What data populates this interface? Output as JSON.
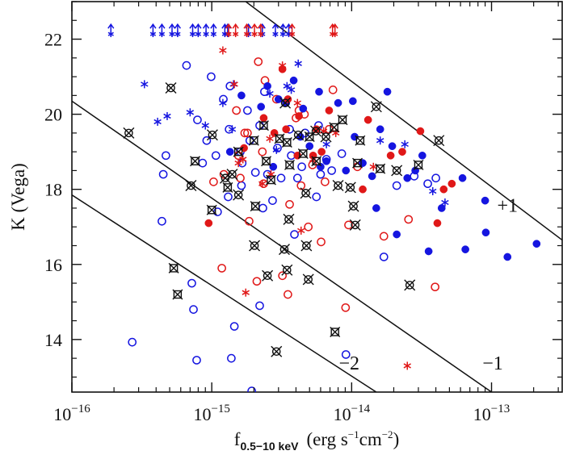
{
  "chart_data": {
    "type": "scatter",
    "title": "",
    "xlabel": "f",
    "xlabel_sub": "0.5−10 keV",
    "xlabel_units": "(erg s",
    "xlabel_units_sup1": "−1",
    "xlabel_units_mid": "cm",
    "xlabel_units_sup2": "−2",
    "xlabel_units_end": ")",
    "ylabel": "K (Vega)",
    "x_scale": "log",
    "xlim": [
      1e-16,
      3.2e-13
    ],
    "ylim": [
      12.6,
      23.0
    ],
    "x_ticks": [
      {
        "value": 1e-16,
        "base": "10",
        "exp": "−16"
      },
      {
        "value": 1e-15,
        "base": "10",
        "exp": "−15"
      },
      {
        "value": 1e-14,
        "base": "10",
        "exp": "−14"
      },
      {
        "value": 1e-13,
        "base": "10",
        "exp": "−13"
      }
    ],
    "y_ticks": [
      {
        "value": 14,
        "label": "14"
      },
      {
        "value": 16,
        "label": "16"
      },
      {
        "value": 18,
        "label": "18"
      },
      {
        "value": 20,
        "label": "20"
      },
      {
        "value": 22,
        "label": "22"
      }
    ],
    "grid": false,
    "colors": {
      "blue": "#1515e0",
      "red": "#e01818",
      "black": "#111111"
    },
    "reference_lines": [
      {
        "label": "+1",
        "points": [
          [
            1.75e-15,
            23.0
          ],
          [
            3.2e-13,
            16.65
          ]
        ]
      },
      {
        "label": "−1",
        "points": [
          [
            1e-16,
            20.35
          ],
          [
            1e-13,
            12.6
          ]
        ]
      },
      {
        "label": "−2",
        "points": [
          [
            1e-16,
            17.85
          ],
          [
            1.5e-14,
            12.6
          ]
        ]
      }
    ],
    "line_labels": [
      {
        "text": "+1",
        "x": 1.3e-13,
        "y": 17.4
      },
      {
        "text": "−1",
        "x": 1.02e-13,
        "y": 13.2
      },
      {
        "text": "−2",
        "x": 9.6e-15,
        "y": 13.2
      }
    ],
    "upper_limits": {
      "y": 22.2,
      "blue": [
        1.9e-16,
        3.8e-16,
        4.4e-16,
        5.2e-16,
        5.7e-16,
        7.3e-16,
        8e-16,
        9.1e-16,
        1.03e-15,
        1.24e-15,
        1.3e-15,
        1.83e-15,
        2.3e-15,
        2.85e-15,
        3.23e-15,
        3.55e-15
      ],
      "red": [
        1.32e-15,
        1.48e-15,
        1.78e-15,
        2.02e-15,
        2.24e-15,
        3.75e-15,
        7.3e-15,
        7.6e-15
      ]
    },
    "series": [
      {
        "name": "",
        "marker": "open-circle",
        "color": "blue",
        "points": [
          [
            2.7e-16,
            13.93
          ],
          [
            4.4e-16,
            17.15
          ],
          [
            4.5e-16,
            18.4
          ],
          [
            4.7e-16,
            18.9
          ],
          [
            6.6e-16,
            21.3
          ],
          [
            7.2e-16,
            15.5
          ],
          [
            7.4e-16,
            14.8
          ],
          [
            7.8e-16,
            13.45
          ],
          [
            7.9e-16,
            19.85
          ],
          [
            8.6e-16,
            18.7
          ],
          [
            9.2e-16,
            19.3
          ],
          [
            9.9e-16,
            21.0
          ],
          [
            1.07e-15,
            18.9
          ],
          [
            1.1e-15,
            17.4
          ],
          [
            1.21e-15,
            20.4
          ],
          [
            1.31e-15,
            17.8
          ],
          [
            1.33e-15,
            19.6
          ],
          [
            1.35e-15,
            20.75
          ],
          [
            1.38e-15,
            13.5
          ],
          [
            1.45e-15,
            14.35
          ],
          [
            1.6e-15,
            19.0
          ],
          [
            1.63e-15,
            18.1
          ],
          [
            1.65e-15,
            18.7
          ],
          [
            1.8e-15,
            20.1
          ],
          [
            1.87e-15,
            19.3
          ],
          [
            1.93e-15,
            12.63
          ],
          [
            2.05e-15,
            18.45
          ],
          [
            2.2e-15,
            14.9
          ],
          [
            2.2e-15,
            19.7
          ],
          [
            2.32e-15,
            17.5
          ],
          [
            2.38e-15,
            20.6
          ],
          [
            2.5e-15,
            18.4
          ],
          [
            2.72e-15,
            17.7
          ],
          [
            2.95e-15,
            19.1
          ],
          [
            3.13e-15,
            18.3
          ],
          [
            3.6e-15,
            19.6
          ],
          [
            3.7e-15,
            18.9
          ],
          [
            3.9e-15,
            16.8
          ],
          [
            4.1e-15,
            18.3
          ],
          [
            4.4e-15,
            18.6
          ],
          [
            4.65e-15,
            19.5
          ],
          [
            5.6e-15,
            17.8
          ],
          [
            5.8e-15,
            19.7
          ],
          [
            6e-15,
            18.4
          ],
          [
            6.6e-15,
            18.8
          ],
          [
            7.2e-15,
            18.5
          ],
          [
            8.5e-15,
            18.95
          ],
          [
            9.1e-15,
            13.6
          ],
          [
            1.7e-14,
            16.2
          ],
          [
            2.1e-14,
            18.1
          ],
          [
            2.8e-14,
            18.35
          ],
          [
            3.5e-14,
            18.15
          ],
          [
            4e-14,
            18.3
          ]
        ]
      },
      {
        "name": "",
        "marker": "open-circle",
        "color": "red",
        "points": [
          [
            1.03e-15,
            18.2
          ],
          [
            1.18e-15,
            15.9
          ],
          [
            1.22e-15,
            18.4
          ],
          [
            1.5e-15,
            20.1
          ],
          [
            1.55e-15,
            18.9
          ],
          [
            1.6e-15,
            18.3
          ],
          [
            1.72e-15,
            19.5
          ],
          [
            1.8e-15,
            19.5
          ],
          [
            1.85e-15,
            17.15
          ],
          [
            2.1e-15,
            15.55
          ],
          [
            2.15e-15,
            21.4
          ],
          [
            2.3e-15,
            19.0
          ],
          [
            2.35e-15,
            18.15
          ],
          [
            2.4e-15,
            20.9
          ],
          [
            2.9e-15,
            20.4
          ],
          [
            3.2e-15,
            15.7
          ],
          [
            3.5e-15,
            15.2
          ],
          [
            3.6e-15,
            17.6
          ],
          [
            4e-15,
            19.9
          ],
          [
            4.2e-15,
            20.1
          ],
          [
            4.35e-15,
            18.1
          ],
          [
            4.6e-15,
            20.0
          ],
          [
            4.9e-15,
            17.0
          ],
          [
            5.25e-15,
            18.65
          ],
          [
            6.05e-15,
            16.6
          ],
          [
            6.45e-15,
            18.2
          ],
          [
            6.9e-15,
            19.6
          ],
          [
            7.35e-15,
            20.65
          ],
          [
            9.05e-15,
            14.85
          ],
          [
            9.5e-15,
            17.05
          ],
          [
            1.1e-14,
            18.6
          ],
          [
            1.7e-14,
            16.75
          ],
          [
            2.55e-14,
            17.2
          ],
          [
            3.95e-14,
            15.4
          ]
        ]
      },
      {
        "name": "",
        "marker": "filled-circle",
        "color": "blue",
        "points": [
          [
            1.35e-15,
            19.0
          ],
          [
            1.63e-15,
            20.5
          ],
          [
            2.25e-15,
            20.2
          ],
          [
            2.5e-15,
            20.75
          ],
          [
            2.75e-15,
            18.6
          ],
          [
            3e-15,
            20.4
          ],
          [
            3.4e-15,
            20.3
          ],
          [
            3.85e-15,
            20.9
          ],
          [
            4.3e-15,
            19.4
          ],
          [
            4.5e-15,
            20.15
          ],
          [
            5e-15,
            19.15
          ],
          [
            5.85e-15,
            20.6
          ],
          [
            6e-15,
            18.6
          ],
          [
            6.6e-15,
            18.75
          ],
          [
            8e-15,
            20.3
          ],
          [
            9.1e-15,
            18.5
          ],
          [
            1.02e-14,
            20.35
          ],
          [
            1.05e-14,
            19.4
          ],
          [
            1.2e-14,
            18.7
          ],
          [
            1.4e-14,
            18.35
          ],
          [
            1.6e-14,
            19.6
          ],
          [
            1.8e-14,
            20.6
          ],
          [
            1.95e-14,
            19.15
          ],
          [
            2.1e-14,
            16.8
          ],
          [
            2.5e-14,
            18.3
          ],
          [
            2.85e-14,
            18.5
          ],
          [
            3.2e-14,
            18.9
          ],
          [
            3.55e-14,
            16.35
          ],
          [
            4.4e-14,
            17.5
          ],
          [
            6.2e-14,
            18.3
          ],
          [
            6.5e-14,
            16.4
          ],
          [
            9e-14,
            17.7
          ],
          [
            9.1e-14,
            16.85
          ],
          [
            1.3e-13,
            16.2
          ],
          [
            2.1e-13,
            16.55
          ],
          [
            1.5e-14,
            17.5
          ]
        ]
      },
      {
        "name": "",
        "marker": "filled-circle",
        "color": "red",
        "points": [
          [
            1.7e-15,
            19.1
          ],
          [
            2.35e-15,
            19.9
          ],
          [
            2.8e-15,
            19.5
          ],
          [
            3.2e-15,
            21.2
          ],
          [
            3.4e-15,
            19.6
          ],
          [
            3.5e-15,
            20.4
          ],
          [
            4.1e-15,
            18.9
          ],
          [
            4.2e-15,
            19.95
          ],
          [
            5.3e-15,
            18.9
          ],
          [
            5.6e-15,
            19.6
          ],
          [
            6.1e-15,
            19.0
          ],
          [
            6.9e-15,
            20.1
          ],
          [
            1.2e-14,
            18.0
          ],
          [
            1.31e-14,
            19.85
          ],
          [
            1.9e-14,
            18.9
          ],
          [
            2.3e-14,
            19.0
          ],
          [
            3.1e-14,
            19.55
          ],
          [
            4.1e-14,
            17.1
          ],
          [
            4.55e-14,
            18.0
          ],
          [
            5.2e-14,
            18.15
          ],
          [
            9.5e-16,
            17.1
          ]
        ]
      },
      {
        "name": "",
        "marker": "asterisk",
        "color": "blue",
        "points": [
          [
            3.3e-16,
            20.8
          ],
          [
            4.1e-16,
            19.8
          ],
          [
            4.8e-16,
            19.95
          ],
          [
            7e-16,
            20.05
          ],
          [
            9e-16,
            19.7
          ],
          [
            1.2e-15,
            20.3
          ],
          [
            1.4e-15,
            19.6
          ],
          [
            1.43e-15,
            20.8
          ],
          [
            2.6e-15,
            20.55
          ],
          [
            2.9e-15,
            19.05
          ],
          [
            3.45e-15,
            20.75
          ],
          [
            3.7e-15,
            20.65
          ],
          [
            4.15e-15,
            21.35
          ],
          [
            6.6e-15,
            19.2
          ],
          [
            1.6e-14,
            19.3
          ],
          [
            2.4e-14,
            19.2
          ],
          [
            3.8e-14,
            17.95
          ],
          [
            4.65e-14,
            17.65
          ]
        ]
      },
      {
        "name": "",
        "marker": "asterisk",
        "color": "red",
        "points": [
          [
            1.2e-15,
            21.7
          ],
          [
            1.45e-15,
            20.8
          ],
          [
            1.55e-15,
            18.7
          ],
          [
            1.67e-15,
            18.8
          ],
          [
            1.75e-15,
            15.25
          ],
          [
            2.3e-15,
            18.15
          ],
          [
            2.6e-15,
            19.35
          ],
          [
            2.65e-15,
            18.4
          ],
          [
            3.2e-15,
            21.3
          ],
          [
            4.1e-15,
            20.3
          ],
          [
            4.35e-15,
            16.9
          ],
          [
            5.3e-15,
            18.8
          ],
          [
            6.3e-15,
            19.55
          ],
          [
            7.7e-15,
            19.5
          ],
          [
            1.43e-14,
            18.6
          ],
          [
            2.5e-14,
            13.3
          ]
        ]
      },
      {
        "name": "",
        "marker": "boxed-cross",
        "color": "black",
        "points": [
          [
            5.35e-16,
            15.9
          ],
          [
            5.7e-16,
            15.2
          ],
          [
            7.6e-16,
            18.75
          ],
          [
            1e-15,
            17.45
          ],
          [
            1.3e-15,
            18.05
          ],
          [
            1.55e-15,
            19.0
          ],
          [
            2e-15,
            19.3
          ],
          [
            2.05e-15,
            17.55
          ],
          [
            2.35e-15,
            19.7
          ],
          [
            2.45e-15,
            18.75
          ],
          [
            2.65e-15,
            18.25
          ],
          [
            3.05e-15,
            19.35
          ],
          [
            3.45e-15,
            19.25
          ],
          [
            3.6e-15,
            18.65
          ],
          [
            4.5e-15,
            18.95
          ],
          [
            5e-15,
            19.4
          ],
          [
            5.6e-15,
            18.75
          ],
          [
            7.5e-15,
            19.65
          ],
          [
            7.6e-15,
            14.2
          ],
          [
            8.6e-15,
            19.85
          ],
          [
            1.15e-14,
            19.3
          ],
          [
            1.6e-14,
            18.55
          ],
          [
            3e-14,
            18.65
          ],
          [
            1.1e-14,
            18.7
          ]
        ]
      },
      {
        "name": "",
        "marker": "circled-cross",
        "color": "black",
        "points": [
          [
            2.55e-16,
            19.5
          ],
          [
            5.1e-16,
            20.7
          ],
          [
            7.1e-16,
            18.1
          ],
          [
            1.25e-15,
            18.3
          ],
          [
            1.4e-15,
            18.4
          ],
          [
            1.55e-15,
            17.85
          ],
          [
            2.02e-15,
            16.5
          ],
          [
            2.5e-15,
            15.7
          ],
          [
            2.9e-15,
            13.68
          ],
          [
            3.3e-15,
            16.4
          ],
          [
            3.35e-15,
            20.3
          ],
          [
            3.45e-15,
            15.85
          ],
          [
            3.55e-15,
            17.2
          ],
          [
            4.15e-15,
            19.45
          ],
          [
            4.7e-15,
            17.9
          ],
          [
            4.75e-15,
            16.5
          ],
          [
            4.9e-15,
            15.6
          ],
          [
            5.55e-15,
            19.55
          ],
          [
            6.55e-15,
            19.4
          ],
          [
            8e-15,
            18.1
          ],
          [
            9.8e-15,
            18.05
          ],
          [
            1.03e-14,
            17.55
          ],
          [
            1.06e-14,
            17.05
          ],
          [
            1.5e-14,
            20.2
          ],
          [
            2.1e-14,
            18.5
          ],
          [
            2.6e-14,
            15.45
          ],
          [
            4.2e-14,
            19.3
          ],
          [
            1.01e-15,
            19.45
          ]
        ]
      }
    ]
  }
}
